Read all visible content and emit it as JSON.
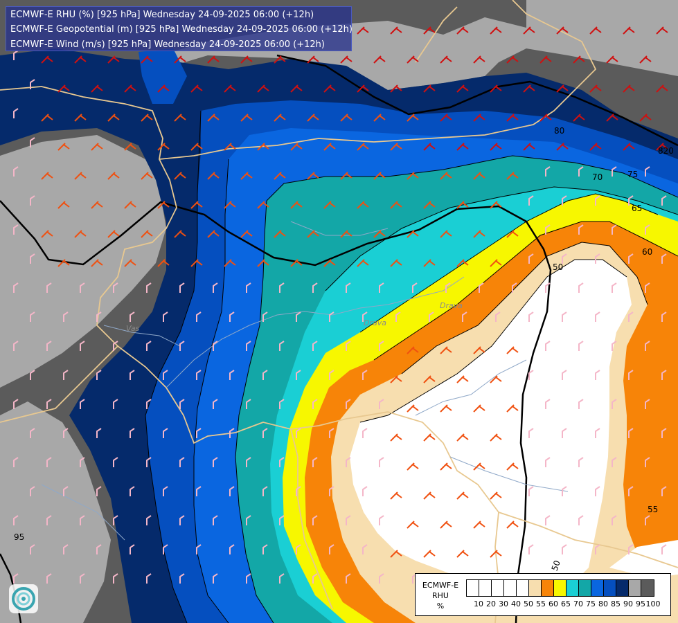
{
  "header": {
    "lines": [
      "ECMWF-E RHU (%) [925 hPa] Wednesday 24-09-2025 06:00 (+12h)",
      "ECMWF-E Geopotential (m) [925 hPa] Wednesday 24-09-2025 06:00 (+12h)",
      "ECMWF-E Wind (m/s) [925 hPa] Wednesday 24-09-2025 06:00 (+12h)"
    ]
  },
  "legend": {
    "model": "ECMWF-E",
    "variable": "RHU",
    "unit": "%",
    "ticks": [
      "10",
      "20",
      "30",
      "40",
      "50",
      "55",
      "60",
      "65",
      "70",
      "75",
      "80",
      "85",
      "90",
      "95",
      "100"
    ],
    "colors": [
      "#ffffff",
      "#ffffff",
      "#ffffff",
      "#ffffff",
      "#ffffff",
      "#f7deaf",
      "#f78408",
      "#f7f700",
      "#1acfd4",
      "#13a7a7",
      "#0a66e0",
      "#054fbf",
      "#052a6b",
      "#a8a8a8",
      "#5b5b5b"
    ]
  },
  "contour_labels": [
    "50",
    "50",
    "55",
    "60",
    "65",
    "70",
    "75",
    "80",
    "95",
    "820"
  ],
  "river_labels": [
    "Vas",
    "Drava",
    "Drava"
  ],
  "map_colors": {
    "rhu_95_100": "#5b5b5b",
    "rhu_90_95": "#a8a8a8",
    "rhu_85_90": "#052a6b",
    "rhu_80_85": "#054fbf",
    "rhu_75_80": "#0a66e0",
    "rhu_70_75": "#13a7a7",
    "rhu_65_70": "#1acfd4",
    "rhu_60_65": "#f7f700",
    "rhu_55_60": "#f78408",
    "rhu_50_55": "#f7deaf",
    "rhu_below_50": "#ffffff",
    "border": "#e8c890",
    "river": "#8fa8c8",
    "geopotential_contour": "#000000",
    "wind_calm": "#f4b6c8",
    "wind_moderate": "#f05010",
    "wind_strong": "#d01010"
  },
  "icons": {
    "logo": "ecmwf-swirl-logo",
    "wind_symbol": "wind-barb-icon"
  }
}
